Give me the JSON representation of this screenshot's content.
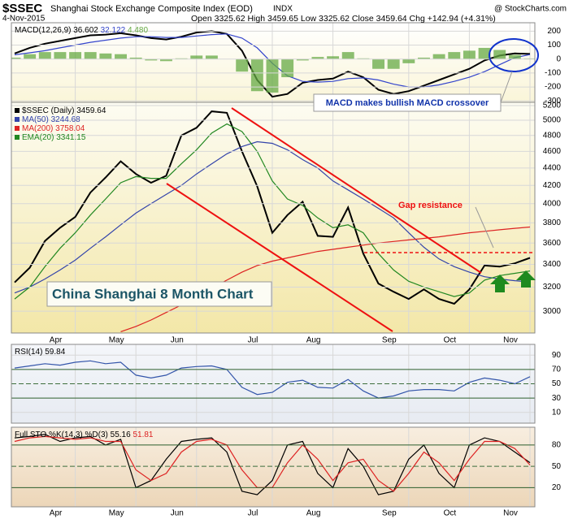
{
  "header": {
    "symbol": "$SSEC",
    "name": "Shanghai Stock Exchange Composite Index (EOD)",
    "exchange": "INDX",
    "date": "4-Nov-2015",
    "quote": "Open 3325.62 High 3459.65 Low 3325.62 Close 3459.64 Chg +142.94 (+4.31%)",
    "source": "@ StockCharts.com"
  },
  "annotations": {
    "chart_label": "China Shanghai 8 Month Chart",
    "macd_note": "MACD makes bullish MACD crossover",
    "gap": "Gap resistance"
  },
  "chart_data": [
    {
      "type": "line",
      "title": "MACD(12,26,9)",
      "ylim": [
        -310,
        260
      ],
      "yticks": [
        -300,
        -200,
        -100,
        0,
        100,
        200
      ],
      "grid": true,
      "series": [
        {
          "name": "MACD",
          "color": "#000000",
          "legend_label": "36.602",
          "values": [
            40,
            80,
            110,
            130,
            150,
            170,
            175,
            185,
            170,
            150,
            140,
            160,
            190,
            200,
            180,
            60,
            -150,
            -270,
            -250,
            -170,
            -150,
            -140,
            -90,
            -130,
            -220,
            -250,
            -230,
            -190,
            -150,
            -110,
            -70,
            -10,
            25,
            40,
            36.602
          ]
        },
        {
          "name": "Signal",
          "color": "#3344cc",
          "legend_label": "32.122",
          "values": [
            30,
            45,
            60,
            80,
            100,
            120,
            135,
            150,
            160,
            160,
            155,
            155,
            165,
            175,
            180,
            150,
            80,
            -30,
            -120,
            -160,
            -165,
            -160,
            -140,
            -135,
            -150,
            -180,
            -200,
            -200,
            -185,
            -160,
            -130,
            -90,
            -40,
            10,
            32.122
          ]
        },
        {
          "name": "Histogram",
          "type": "bar",
          "color": "#66aa44",
          "legend_label": "4.480",
          "values": [
            10,
            35,
            50,
            50,
            50,
            50,
            40,
            35,
            10,
            -10,
            -15,
            5,
            25,
            25,
            0,
            -90,
            -230,
            -240,
            -130,
            -10,
            15,
            20,
            50,
            5,
            -70,
            -70,
            -30,
            10,
            35,
            50,
            60,
            80,
            65,
            30,
            4.48
          ]
        }
      ]
    },
    {
      "type": "line",
      "title": "$SSEC (Daily)",
      "log_scale": true,
      "ylim": [
        2830,
        5245
      ],
      "yticks": [
        3000,
        3200,
        3400,
        3600,
        3800,
        4000,
        4200,
        4400,
        4600,
        4800,
        5000,
        5200
      ],
      "grid": true,
      "categories": [
        null,
        null,
        null,
        null,
        "Apr",
        null,
        null,
        null,
        "May",
        null,
        null,
        null,
        "Jun",
        null,
        null,
        null,
        null,
        "Jul",
        null,
        null,
        null,
        "Aug",
        null,
        null,
        null,
        null,
        "Sep",
        null,
        null,
        null,
        "Oct",
        null,
        null,
        null,
        "Nov"
      ],
      "series": [
        {
          "name": "$SSEC (Daily)",
          "color": "#000000",
          "values": [
            3240,
            3370,
            3620,
            3750,
            3860,
            4120,
            4290,
            4480,
            4330,
            4230,
            4310,
            4800,
            4900,
            5120,
            5100,
            4600,
            4190,
            3700,
            3880,
            4020,
            3670,
            3660,
            3960,
            3500,
            3230,
            3160,
            3100,
            3180,
            3100,
            3060,
            3180,
            3390,
            3380,
            3410,
            3459.64
          ]
        },
        {
          "name": "MA(50)",
          "color": "#3344aa",
          "values": [
            3150,
            3200,
            3270,
            3350,
            3440,
            3550,
            3660,
            3780,
            3900,
            4000,
            4100,
            4200,
            4330,
            4450,
            4570,
            4660,
            4720,
            4700,
            4620,
            4500,
            4400,
            4250,
            4150,
            4050,
            3950,
            3850,
            3700,
            3560,
            3450,
            3380,
            3330,
            3290,
            3270,
            3255,
            3244.68
          ]
        },
        {
          "name": "MA(200)",
          "color": "#dd2222",
          "values": [
            null,
            null,
            null,
            null,
            null,
            null,
            null,
            2840,
            2880,
            2930,
            2990,
            3050,
            3120,
            3190,
            3260,
            3330,
            3390,
            3430,
            3460,
            3490,
            3520,
            3540,
            3560,
            3580,
            3600,
            3615,
            3630,
            3645,
            3660,
            3680,
            3700,
            3715,
            3730,
            3745,
            3758.04
          ]
        },
        {
          "name": "EMA(20)",
          "color": "#228822",
          "values": [
            3100,
            3200,
            3380,
            3550,
            3700,
            3880,
            4050,
            4230,
            4300,
            4280,
            4280,
            4450,
            4620,
            4830,
            4950,
            4850,
            4600,
            4250,
            4050,
            3980,
            3850,
            3750,
            3780,
            3700,
            3500,
            3350,
            3250,
            3200,
            3160,
            3120,
            3150,
            3260,
            3300,
            3320,
            3341.15
          ]
        }
      ]
    },
    {
      "type": "line",
      "title": "RSI(14)",
      "ylim": [
        -5,
        105
      ],
      "yticks": [
        10,
        30,
        50,
        70,
        90
      ],
      "grid": true,
      "series": [
        {
          "name": "RSI(14)",
          "color": "#3355aa",
          "values": [
            72,
            75,
            78,
            76,
            80,
            82,
            78,
            80,
            62,
            58,
            62,
            72,
            74,
            75,
            70,
            45,
            35,
            38,
            52,
            55,
            45,
            44,
            56,
            40,
            30,
            33,
            40,
            42,
            42,
            40,
            52,
            58,
            55,
            50,
            59.84
          ]
        }
      ]
    },
    {
      "type": "line",
      "title": "Full STO",
      "ylim": [
        -7,
        105
      ],
      "yticks": [
        20,
        50,
        80
      ],
      "grid": true,
      "series": [
        {
          "name": "%K(14,3)",
          "color": "#000000",
          "values": [
            90,
            92,
            95,
            85,
            90,
            92,
            80,
            88,
            20,
            30,
            60,
            85,
            88,
            90,
            70,
            15,
            10,
            30,
            80,
            85,
            40,
            20,
            75,
            50,
            10,
            15,
            60,
            80,
            40,
            20,
            80,
            90,
            85,
            70,
            55.16
          ]
        },
        {
          "name": "%D(3)",
          "color": "#dd2222",
          "values": [
            85,
            90,
            92,
            90,
            88,
            90,
            85,
            85,
            45,
            30,
            40,
            70,
            85,
            88,
            80,
            45,
            20,
            20,
            55,
            80,
            60,
            30,
            55,
            60,
            30,
            15,
            40,
            70,
            55,
            30,
            60,
            85,
            85,
            75,
            51.81
          ]
        }
      ]
    }
  ]
}
